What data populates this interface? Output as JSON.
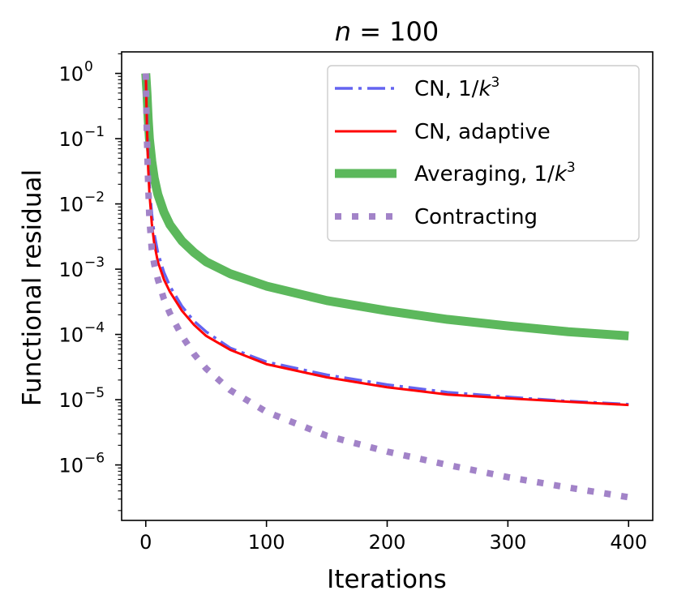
{
  "chart_data": {
    "type": "line",
    "title_var": "n",
    "title_rest": " = 100",
    "xlabel": "Iterations",
    "ylabel": "Functional residual",
    "xlim": [
      -20,
      420
    ],
    "ylim_log10": [
      -6.85,
      0.33
    ],
    "yscale": "log",
    "grid": false,
    "legend_position": "top-right",
    "x_ticks": [
      {
        "value": 0,
        "label": "0"
      },
      {
        "value": 100,
        "label": "100"
      },
      {
        "value": 200,
        "label": "200"
      },
      {
        "value": 300,
        "label": "300"
      },
      {
        "value": 400,
        "label": "400"
      }
    ],
    "y_ticks": [
      {
        "exp": 0,
        "base": "10",
        "sup": "0"
      },
      {
        "exp": -1,
        "base": "10",
        "sup": "−1"
      },
      {
        "exp": -2,
        "base": "10",
        "sup": "−2"
      },
      {
        "exp": -3,
        "base": "10",
        "sup": "−3"
      },
      {
        "exp": -4,
        "base": "10",
        "sup": "−4"
      },
      {
        "exp": -5,
        "base": "10",
        "sup": "−5"
      },
      {
        "exp": -6,
        "base": "10",
        "sup": "−6"
      }
    ],
    "series": [
      {
        "name": "CN, 1/k³",
        "label_parts": [
          "CN, 1/",
          "k",
          "3"
        ],
        "color": "#6464f0",
        "style": "dashdot",
        "x": [
          0,
          1,
          2,
          3,
          5,
          7,
          10,
          15,
          20,
          30,
          40,
          50,
          70,
          100,
          150,
          200,
          250,
          300,
          350,
          400
        ],
        "y": [
          1.0,
          0.22,
          0.05,
          0.02,
          0.007,
          0.0035,
          0.0018,
          0.0009,
          0.00055,
          0.00027,
          0.00016,
          0.00011,
          6.2e-05,
          3.8e-05,
          2.4e-05,
          1.7e-05,
          1.3e-05,
          1.1e-05,
          9.5e-06,
          8.5e-06
        ]
      },
      {
        "name": "CN, adaptive",
        "label_parts": [
          "CN, adaptive"
        ],
        "color": "#ff0000",
        "style": "solid",
        "x": [
          0,
          1,
          2,
          3,
          5,
          7,
          10,
          15,
          20,
          30,
          40,
          50,
          70,
          100,
          150,
          200,
          250,
          300,
          350,
          400
        ],
        "y": [
          1.0,
          0.15,
          0.035,
          0.015,
          0.005,
          0.0025,
          0.0013,
          0.0007,
          0.00045,
          0.00023,
          0.00014,
          9.5e-05,
          5.8e-05,
          3.5e-05,
          2.2e-05,
          1.55e-05,
          1.2e-05,
          1.05e-05,
          9.3e-06,
          8.3e-06
        ]
      },
      {
        "name": "Averaging, 1/k³",
        "label_parts": [
          "Averaging, 1/",
          "k",
          "3"
        ],
        "color": "#5cb85c",
        "style": "thick",
        "x": [
          0,
          1,
          2,
          3,
          5,
          7,
          10,
          15,
          20,
          30,
          40,
          50,
          70,
          100,
          150,
          200,
          250,
          300,
          350,
          400
        ],
        "y": [
          1.0,
          0.5,
          0.2,
          0.1,
          0.045,
          0.025,
          0.014,
          0.0075,
          0.0048,
          0.0027,
          0.0018,
          0.0013,
          0.00085,
          0.00055,
          0.00033,
          0.00023,
          0.00017,
          0.000135,
          0.00011,
          9.5e-05
        ]
      },
      {
        "name": "Contracting",
        "label_parts": [
          "Contracting"
        ],
        "color": "#a283c8",
        "style": "dotted",
        "x": [
          0,
          1,
          2,
          3,
          5,
          7,
          10,
          15,
          20,
          30,
          40,
          50,
          70,
          100,
          150,
          200,
          250,
          300,
          350,
          400
        ],
        "y": [
          1.0,
          0.1,
          0.02,
          0.006,
          0.002,
          0.0012,
          0.0007,
          0.00035,
          0.00021,
          9.5e-05,
          5e-05,
          3e-05,
          1.4e-05,
          6.5e-06,
          2.8e-06,
          1.6e-06,
          1e-06,
          6.5e-07,
          4.5e-07,
          3.2e-07
        ]
      }
    ]
  }
}
